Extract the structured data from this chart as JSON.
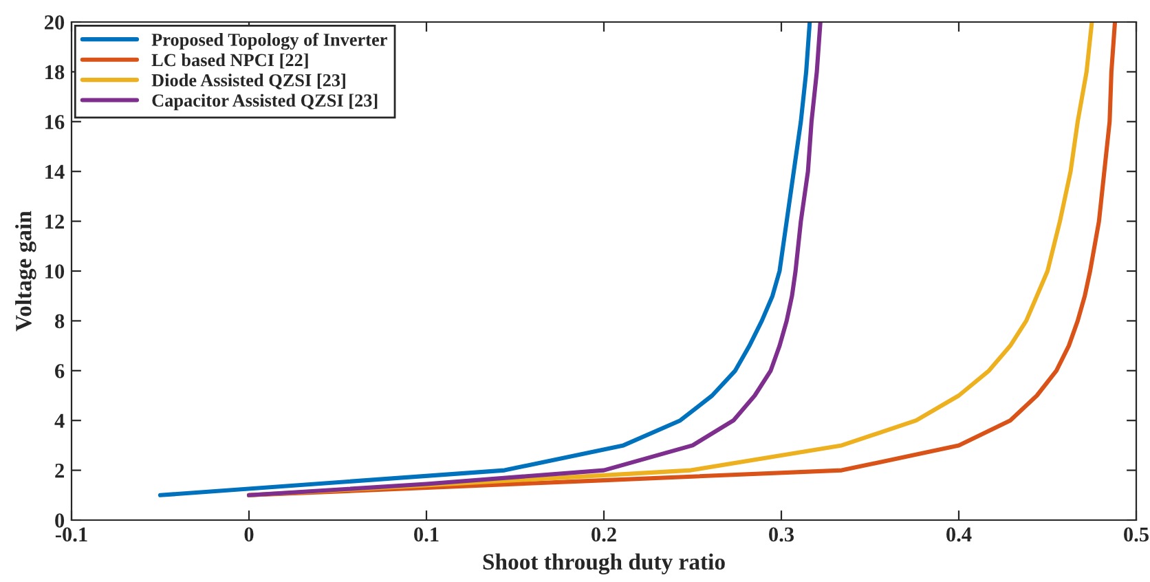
{
  "chart_data": {
    "type": "line",
    "xlabel": "Shoot through duty ratio",
    "ylabel": "Voltage gain",
    "xlim": [
      -0.1,
      0.5
    ],
    "ylim": [
      0,
      20
    ],
    "xticks": [
      {
        "value": -0.1,
        "label": "-0.1"
      },
      0,
      0.1,
      0.2,
      0.3,
      0.4,
      0.5
    ],
    "yticks": [
      0,
      2,
      4,
      6,
      8,
      10,
      12,
      14,
      16,
      18,
      20
    ],
    "grid": false,
    "legend": "top left",
    "line_style": "solid",
    "marker": "none",
    "series": [
      {
        "name": "Proposed Topology of Inverter",
        "color": "#0072bd",
        "x": [
          -0.05,
          0.144,
          0.211,
          0.243,
          0.261,
          0.274,
          0.282,
          0.289,
          0.295,
          0.299,
          0.303,
          0.307,
          0.311,
          0.314,
          0.316
        ],
        "values": [
          1,
          2,
          3,
          4,
          5,
          6,
          7,
          8,
          9,
          10,
          12,
          14,
          16,
          18,
          20
        ]
      },
      {
        "name": "LC based NPCI [22]",
        "color": "#d95319",
        "x": [
          0,
          0.2,
          0.334,
          0.4,
          0.429,
          0.444,
          0.455,
          0.462,
          0.467,
          0.471,
          0.474,
          0.479,
          0.482,
          0.485,
          0.486,
          0.488
        ],
        "values": [
          1,
          1.6,
          2,
          3,
          4,
          5,
          6,
          7,
          8,
          9,
          10,
          12,
          14,
          16,
          18,
          20
        ]
      },
      {
        "name": "Diode Assisted QZSI [23]",
        "color": "#edb120",
        "x": [
          0,
          0.2,
          0.249,
          0.334,
          0.376,
          0.4,
          0.417,
          0.429,
          0.438,
          0.444,
          0.45,
          0.457,
          0.463,
          0.467,
          0.472,
          0.475
        ],
        "values": [
          1,
          1.8,
          2,
          3,
          4,
          5,
          6,
          7,
          8,
          9,
          10,
          12,
          14,
          16,
          18,
          20
        ]
      },
      {
        "name": "Capacitor Assisted QZSI [23]",
        "color": "#7e2f8e",
        "x": [
          0,
          0.1,
          0.2,
          0.25,
          0.273,
          0.285,
          0.294,
          0.299,
          0.303,
          0.306,
          0.308,
          0.311,
          0.315,
          0.317,
          0.32,
          0.322
        ],
        "values": [
          1,
          1.45,
          2,
          3,
          4,
          5,
          6,
          7,
          8,
          9,
          10,
          12,
          14,
          16,
          18,
          20
        ]
      }
    ]
  }
}
